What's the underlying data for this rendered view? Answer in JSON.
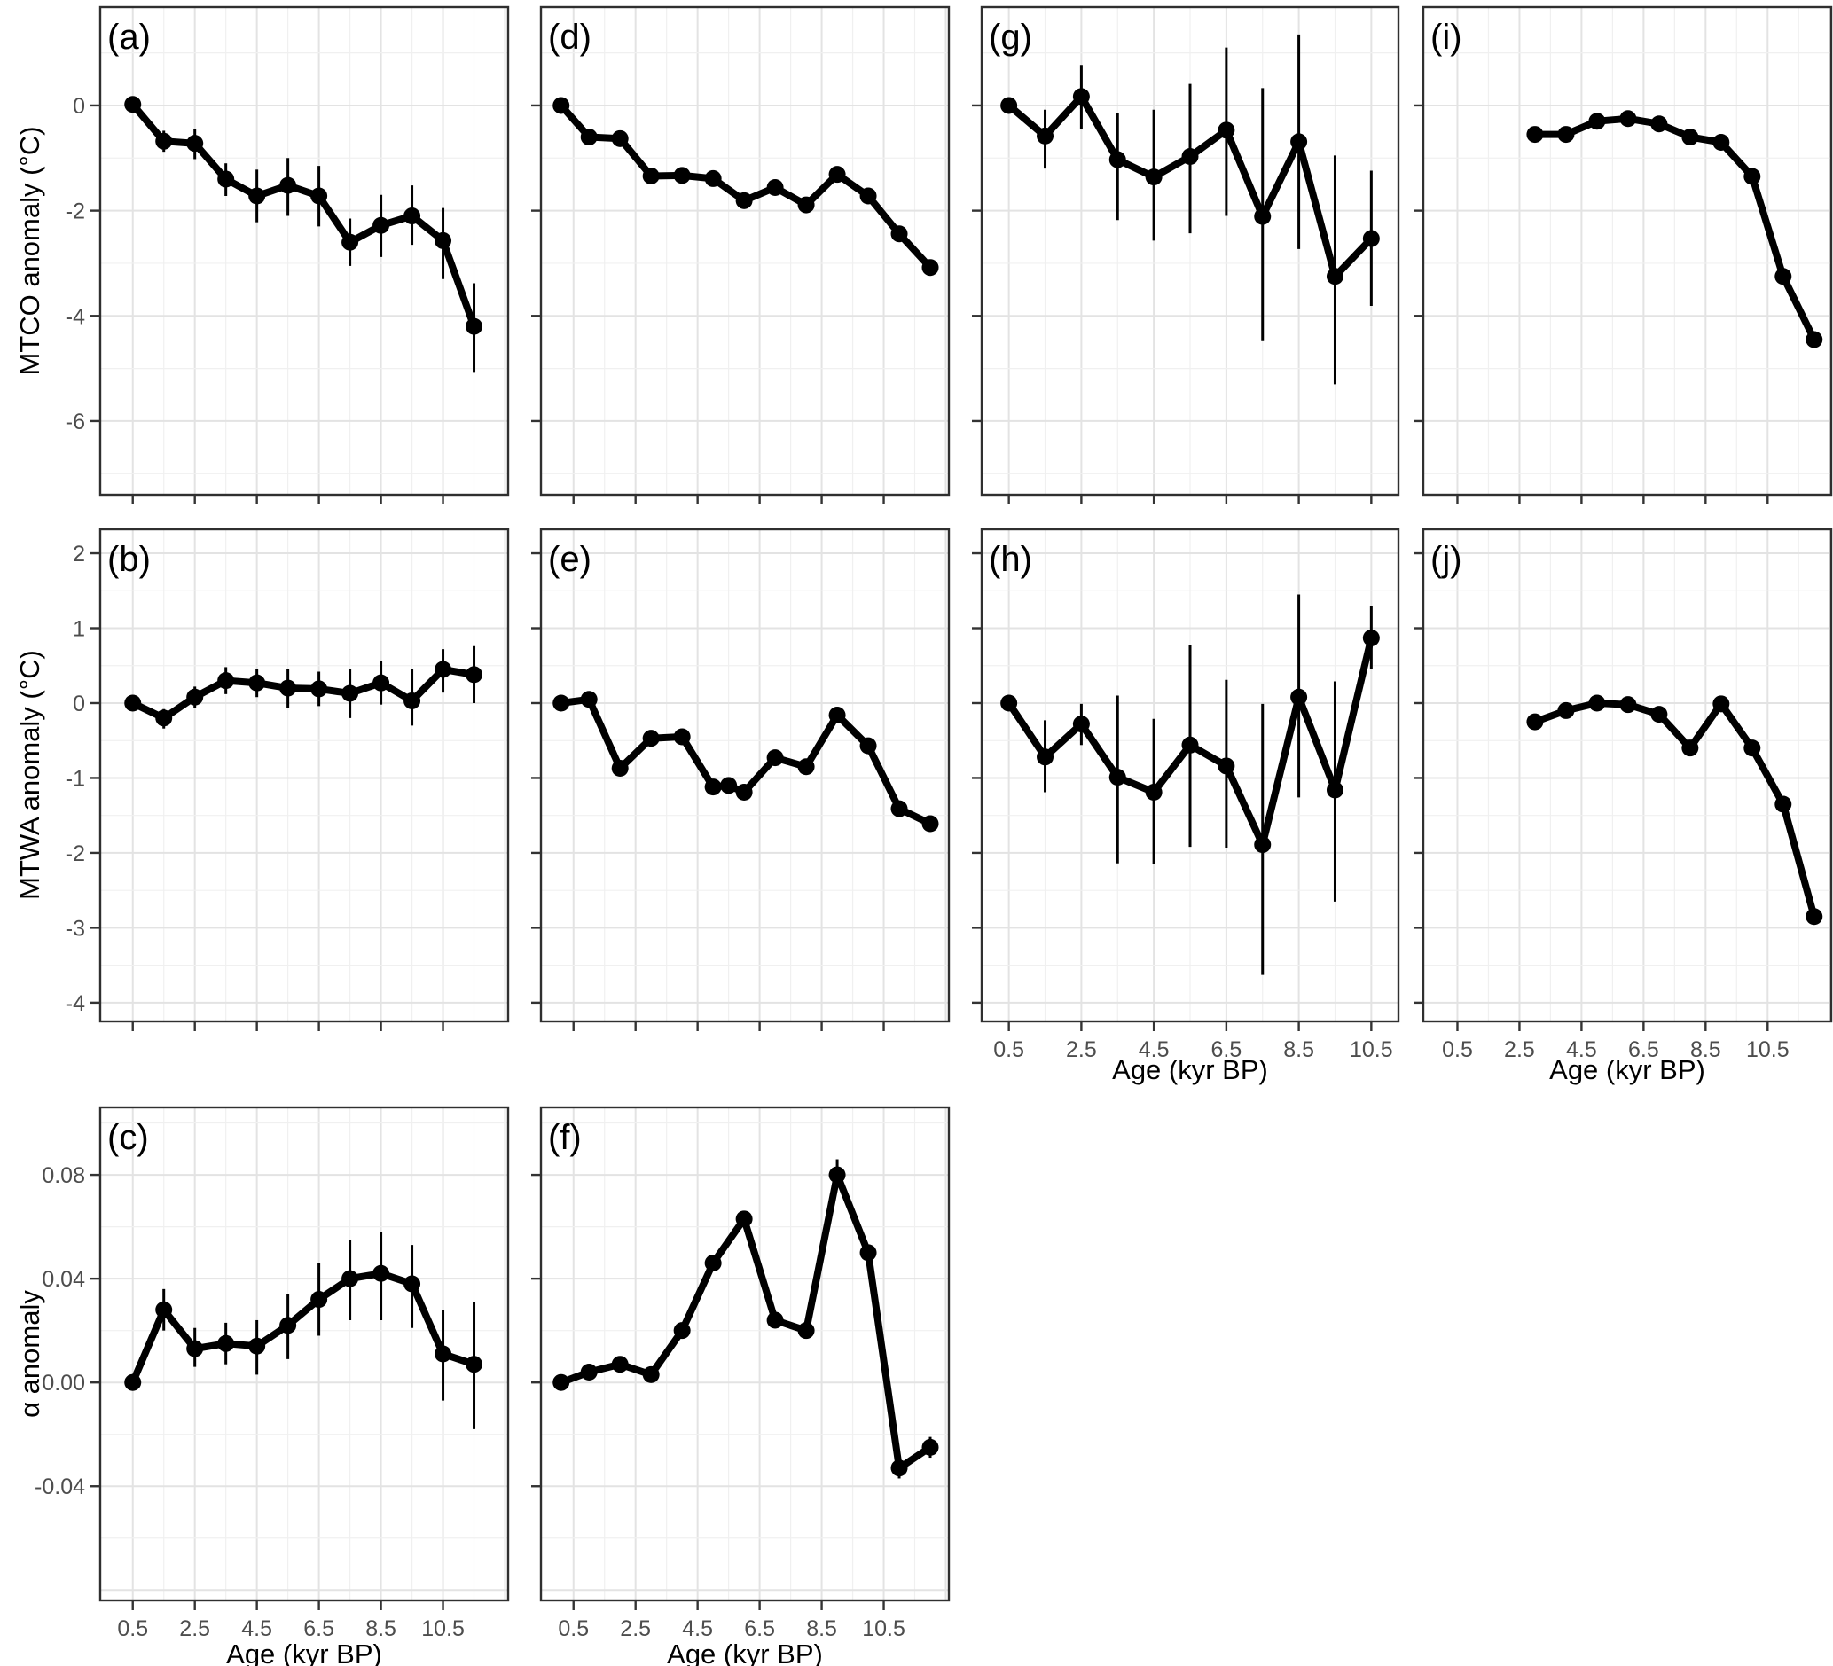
{
  "figure": {
    "description": "Ten-panel paleoclimate reconstruction figure: anomalies vs age for four records (columns) and three variables (rows)",
    "background": "#ffffff",
    "text_color": "#4d4d4d",
    "line_color": "#000000",
    "grid_major_color": "#e3e3e3",
    "grid_minor_color": "#f0f0f0",
    "border_color": "#2f2f2f"
  },
  "chart_data": {
    "type": "line",
    "layout": "grid of 10 panels: rows = MTCO / MTWA / alpha anomaly, columns = 4 records; points with vertical error bars",
    "legend": "none",
    "grid": "on",
    "x_axis": {
      "label": "Age (kyr BP)",
      "tick_values": [
        0.5,
        2.5,
        4.5,
        6.5,
        8.5,
        10.5
      ],
      "tick_labels": [
        "0.5",
        "2.5",
        "4.5",
        "6.5",
        "8.5",
        "10.5"
      ]
    },
    "rows": [
      {
        "ylabel": "MTCO anomaly (°C)",
        "ylim": [
          -7.4,
          1.87
        ],
        "ytick_values": [
          0,
          -2,
          -4,
          -6
        ],
        "ytick_labels": [
          "0",
          "-2",
          "-4",
          "-6"
        ],
        "minor_step": 1
      },
      {
        "ylabel": "MTWA anomaly (°C)",
        "ylim": [
          -4.25,
          2.32
        ],
        "ytick_values": [
          2,
          1,
          0,
          -1,
          -2,
          -3,
          -4
        ],
        "ytick_labels": [
          "2",
          "1",
          "0",
          "-1",
          "-2",
          "-3",
          "-4"
        ],
        "minor_step": 0.5
      },
      {
        "ylabel": "α anomaly",
        "ylim": [
          -0.084,
          0.106
        ],
        "ytick_values": [
          0.08,
          0.04,
          0,
          -0.04
        ],
        "ytick_labels": [
          "0.08",
          "0.04",
          "0.00",
          "-0.04"
        ],
        "minor_step": 0.02
      }
    ],
    "panels": [
      {
        "id": "a",
        "label": "(a)",
        "row": 0,
        "col": 0,
        "xlim": [
          -0.55,
          12.6
        ],
        "show_x_labels": false,
        "show_y_labels": true,
        "x": [
          0.5,
          1.5,
          2.5,
          3.5,
          4.5,
          5.5,
          6.5,
          7.5,
          8.5,
          9.5,
          10.5,
          11.5
        ],
        "y": [
          0.02,
          -0.68,
          -0.72,
          -1.4,
          -1.72,
          -1.52,
          -1.72,
          -2.6,
          -2.28,
          -2.1,
          -2.57,
          -4.2
        ],
        "lo": [
          -0.02,
          -0.88,
          -1.02,
          -1.72,
          -2.22,
          -2.1,
          -2.3,
          -3.05,
          -2.88,
          -2.65,
          -3.3,
          -5.08
        ],
        "hi": [
          0.06,
          -0.48,
          -0.45,
          -1.1,
          -1.22,
          -1.0,
          -1.15,
          -2.15,
          -1.7,
          -1.52,
          -1.95,
          -3.38
        ]
      },
      {
        "id": "d",
        "label": "(d)",
        "row": 0,
        "col": 1,
        "xlim": [
          -0.55,
          12.6
        ],
        "show_x_labels": false,
        "show_y_labels": false,
        "x": [
          0.1,
          1,
          2,
          3,
          4,
          5,
          6,
          7,
          8,
          9,
          10,
          11,
          12
        ],
        "y": [
          0.0,
          -0.6,
          -0.63,
          -1.34,
          -1.33,
          -1.39,
          -1.81,
          -1.56,
          -1.89,
          -1.31,
          -1.72,
          -2.44,
          -3.08
        ],
        "lo": [
          -0.07,
          -0.67,
          -0.7,
          -1.41,
          -1.4,
          -1.46,
          -1.88,
          -1.63,
          -1.96,
          -1.38,
          -1.79,
          -2.51,
          -3.15
        ],
        "hi": [
          0.07,
          -0.53,
          -0.56,
          -1.27,
          -1.26,
          -1.32,
          -1.74,
          -1.49,
          -1.82,
          -1.24,
          -1.65,
          -2.37,
          -3.01
        ]
      },
      {
        "id": "g",
        "label": "(g)",
        "row": 0,
        "col": 2,
        "xlim": [
          -0.25,
          11.25
        ],
        "show_x_labels": false,
        "show_y_labels": false,
        "x": [
          0.5,
          1.5,
          2.5,
          3.5,
          4.5,
          5.5,
          6.5,
          7.5,
          8.5,
          9.5,
          10.5
        ],
        "y": [
          0.0,
          -0.58,
          0.17,
          -1.03,
          -1.36,
          -0.97,
          -0.47,
          -2.11,
          -0.69,
          -3.25,
          -2.53
        ],
        "lo": [
          -0.05,
          -1.2,
          -0.44,
          -2.18,
          -2.57,
          -2.43,
          -2.1,
          -4.48,
          -2.73,
          -5.3,
          -3.81
        ],
        "hi": [
          0.05,
          -0.08,
          0.77,
          -0.14,
          -0.08,
          0.41,
          1.1,
          0.33,
          1.35,
          -0.95,
          -1.24
        ]
      },
      {
        "id": "i",
        "label": "(i)",
        "row": 0,
        "col": 3,
        "xlim": [
          -0.6,
          12.55
        ],
        "show_x_labels": false,
        "show_y_labels": false,
        "x": [
          3,
          4,
          5,
          6,
          7,
          8,
          9,
          10,
          11,
          12
        ],
        "y": [
          -0.55,
          -0.55,
          -0.3,
          -0.25,
          -0.35,
          -0.6,
          -0.7,
          -1.35,
          -3.25,
          -4.45
        ],
        "lo": [
          -0.59,
          -0.59,
          -0.34,
          -0.29,
          -0.39,
          -0.64,
          -0.74,
          -1.39,
          -3.29,
          -4.49
        ],
        "hi": [
          -0.51,
          -0.51,
          -0.26,
          -0.21,
          -0.31,
          -0.56,
          -0.66,
          -1.31,
          -3.21,
          -4.41
        ]
      },
      {
        "id": "b",
        "label": "(b)",
        "row": 1,
        "col": 0,
        "xlim": [
          -0.55,
          12.6
        ],
        "show_x_labels": false,
        "show_y_labels": true,
        "x": [
          0.5,
          1.5,
          2.5,
          3.5,
          4.5,
          5.5,
          6.5,
          7.5,
          8.5,
          9.5,
          10.5,
          11.5
        ],
        "y": [
          0.0,
          -0.2,
          0.08,
          0.3,
          0.27,
          0.2,
          0.19,
          0.13,
          0.27,
          0.03,
          0.45,
          0.38
        ],
        "lo": [
          -0.04,
          -0.34,
          -0.06,
          0.12,
          0.08,
          -0.06,
          -0.04,
          -0.2,
          -0.02,
          -0.3,
          0.14,
          0.0
        ],
        "hi": [
          0.04,
          -0.08,
          0.22,
          0.48,
          0.46,
          0.46,
          0.42,
          0.46,
          0.56,
          0.46,
          0.72,
          0.76
        ]
      },
      {
        "id": "e",
        "label": "(e)",
        "row": 1,
        "col": 1,
        "xlim": [
          -0.55,
          12.6
        ],
        "show_x_labels": false,
        "show_y_labels": false,
        "x": [
          0.1,
          1,
          2,
          3,
          4,
          5,
          5.5,
          6,
          7,
          8,
          9,
          10,
          11,
          12
        ],
        "y": [
          0.0,
          0.05,
          -0.87,
          -0.47,
          -0.45,
          -1.12,
          -1.1,
          -1.19,
          -0.73,
          -0.85,
          -0.16,
          -0.57,
          -1.41,
          -1.61
        ],
        "lo": [
          -0.05,
          0.0,
          -0.92,
          -0.52,
          -0.5,
          -1.17,
          -1.15,
          -1.24,
          -0.78,
          -0.9,
          -0.21,
          -0.62,
          -1.46,
          -1.66
        ],
        "hi": [
          0.05,
          0.1,
          -0.82,
          -0.42,
          -0.4,
          -1.07,
          -1.05,
          -1.14,
          -0.68,
          -0.8,
          -0.11,
          -0.52,
          -1.36,
          -1.56
        ]
      },
      {
        "id": "h",
        "label": "(h)",
        "row": 1,
        "col": 2,
        "xlim": [
          -0.25,
          11.25
        ],
        "show_x_labels": true,
        "show_y_labels": false,
        "x": [
          0.5,
          1.5,
          2.5,
          3.5,
          4.5,
          5.5,
          6.5,
          7.5,
          8.5,
          9.5,
          10.5
        ],
        "y": [
          0.0,
          -0.72,
          -0.28,
          -0.99,
          -1.19,
          -0.56,
          -0.84,
          -1.89,
          0.08,
          -1.16,
          0.87
        ],
        "lo": [
          -0.04,
          -1.19,
          -0.56,
          -2.14,
          -2.15,
          -1.92,
          -1.93,
          -3.63,
          -1.26,
          -2.65,
          0.45
        ],
        "hi": [
          0.04,
          -0.23,
          -0.01,
          0.1,
          -0.21,
          0.77,
          0.31,
          -0.01,
          1.45,
          0.29,
          1.29
        ]
      },
      {
        "id": "j",
        "label": "(j)",
        "row": 1,
        "col": 3,
        "xlim": [
          -0.6,
          12.55
        ],
        "show_x_labels": true,
        "show_y_labels": false,
        "x": [
          3,
          4,
          5,
          6,
          7,
          8,
          9,
          10,
          11,
          12
        ],
        "y": [
          -0.25,
          -0.1,
          0.0,
          -0.02,
          -0.15,
          -0.6,
          -0.01,
          -0.6,
          -1.35,
          -2.85
        ],
        "lo": [
          -0.29,
          -0.14,
          -0.04,
          -0.06,
          -0.19,
          -0.64,
          -0.05,
          -0.64,
          -1.39,
          -2.89
        ],
        "hi": [
          -0.21,
          -0.06,
          0.04,
          0.02,
          -0.11,
          -0.56,
          0.03,
          -0.56,
          -1.31,
          -2.81
        ]
      },
      {
        "id": "c",
        "label": "(c)",
        "row": 2,
        "col": 0,
        "xlim": [
          -0.55,
          12.6
        ],
        "show_x_labels": true,
        "show_y_labels": true,
        "x": [
          0.5,
          1.5,
          2.5,
          3.5,
          4.5,
          5.5,
          6.5,
          7.5,
          8.5,
          9.5,
          10.5,
          11.5
        ],
        "y": [
          0.0,
          0.028,
          0.013,
          0.015,
          0.014,
          0.022,
          0.032,
          0.04,
          0.042,
          0.038,
          0.011,
          0.007
        ],
        "lo": [
          -0.001,
          0.02,
          0.006,
          0.007,
          0.003,
          0.009,
          0.018,
          0.024,
          0.024,
          0.021,
          -0.007,
          -0.018
        ],
        "hi": [
          0.001,
          0.036,
          0.021,
          0.023,
          0.024,
          0.034,
          0.046,
          0.055,
          0.058,
          0.053,
          0.028,
          0.031
        ]
      },
      {
        "id": "f",
        "label": "(f)",
        "row": 2,
        "col": 1,
        "xlim": [
          -0.55,
          12.6
        ],
        "show_x_labels": true,
        "show_y_labels": false,
        "x": [
          0.1,
          1,
          2,
          3,
          4,
          5,
          6,
          7,
          8,
          9,
          10,
          11,
          12
        ],
        "y": [
          0.0,
          0.004,
          0.007,
          0.003,
          0.02,
          0.046,
          0.063,
          0.024,
          0.02,
          0.08,
          0.05,
          -0.033,
          -0.025
        ],
        "lo": [
          -0.001,
          0.003,
          0.005,
          0.001,
          0.018,
          0.044,
          0.06,
          0.022,
          0.017,
          0.077,
          0.048,
          -0.037,
          -0.029
        ],
        "hi": [
          0.001,
          0.005,
          0.009,
          0.005,
          0.022,
          0.048,
          0.066,
          0.026,
          0.023,
          0.086,
          0.052,
          -0.029,
          -0.021
        ]
      }
    ]
  }
}
